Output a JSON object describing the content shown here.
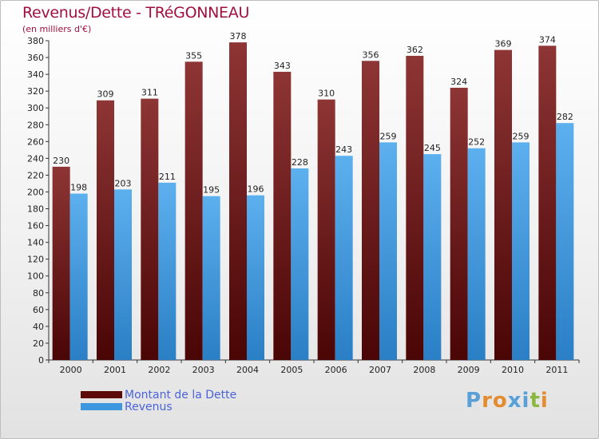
{
  "header": {
    "title": "Revenus/Dette - TRéGONNEAU",
    "subtitle": "(en milliers d'€)"
  },
  "chart_data": {
    "type": "bar",
    "title": "Revenus/Dette - TRéGONNEAU",
    "ylabel": "(en milliers d'€)",
    "xlabel": "",
    "ylim": [
      0,
      380
    ],
    "ytick_step": 20,
    "grid": false,
    "legend_position": "bottom-left",
    "categories": [
      "2000",
      "2001",
      "2002",
      "2003",
      "2004",
      "2005",
      "2006",
      "2007",
      "2008",
      "2009",
      "2010",
      "2011"
    ],
    "series": [
      {
        "name": "Montant de la Dette",
        "color": "#7a1a1a",
        "values": [
          230,
          309,
          311,
          355,
          378,
          343,
          310,
          356,
          362,
          324,
          369,
          374
        ]
      },
      {
        "name": "Revenus",
        "color": "#3d97df",
        "values": [
          198,
          203,
          211,
          195,
          196,
          228,
          243,
          259,
          245,
          252,
          259,
          282
        ]
      }
    ]
  },
  "legend": {
    "items": [
      {
        "label": "Montant de la Dette",
        "color": "#5c0a0a"
      },
      {
        "label": "Revenus",
        "color": "#3d97df"
      }
    ]
  },
  "branding": {
    "letters": [
      "P",
      "r",
      "o",
      "x",
      "i",
      "t",
      "i"
    ],
    "colors": [
      "#5aa0d8",
      "#e38b2e",
      "#e38b2e",
      "#5aa0d8",
      "#5aa0d8",
      "#8ab83e",
      "#e38b2e"
    ]
  }
}
